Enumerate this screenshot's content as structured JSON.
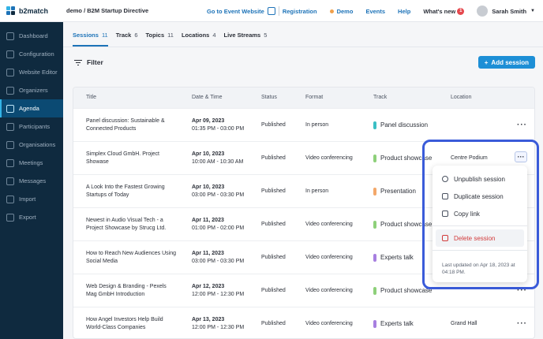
{
  "brand": {
    "name": "b2match",
    "org": "demo / B2M Startup Directive"
  },
  "topnav": {
    "go_to_event": "Go to Event Website",
    "registration": "Registration",
    "demo": "Demo",
    "events": "Events",
    "help": "Help",
    "whats_new": "What's new",
    "whats_new_count": "1",
    "user_name": "Sarah Smith"
  },
  "sidebar": {
    "items": [
      {
        "label": "Dashboard",
        "icon": "dashboard-icon"
      },
      {
        "label": "Configuration",
        "icon": "settings-icon"
      },
      {
        "label": "Website Editor",
        "icon": "edit-icon"
      },
      {
        "label": "Organizers",
        "icon": "users-icon"
      },
      {
        "label": "Agenda",
        "icon": "calendar-icon",
        "active": true
      },
      {
        "label": "Participants",
        "icon": "participants-icon"
      },
      {
        "label": "Organisations",
        "icon": "building-icon"
      },
      {
        "label": "Meetings",
        "icon": "meeting-icon"
      },
      {
        "label": "Messages",
        "icon": "message-icon"
      },
      {
        "label": "Import",
        "icon": "import-icon"
      },
      {
        "label": "Export",
        "icon": "export-icon"
      }
    ]
  },
  "tabs": [
    {
      "label": "Sessions",
      "count": "11",
      "active": true
    },
    {
      "label": "Track",
      "count": "6"
    },
    {
      "label": "Topics",
      "count": "11"
    },
    {
      "label": "Locations",
      "count": "4"
    },
    {
      "label": "Live Streams",
      "count": "5"
    }
  ],
  "toolbar": {
    "filter_label": "Filter",
    "add_label": "Add session"
  },
  "table": {
    "headers": [
      "Title",
      "Date & Time",
      "Status",
      "Format",
      "Track",
      "Location"
    ],
    "rows": [
      {
        "title": "Panel discussion: Sustainable & Connected Products",
        "date": "Apr 09, 2023",
        "time": "01:35 PM - 03:00 PM",
        "status": "Published",
        "format": "In person",
        "track": "Panel discussion",
        "track_color": "#3bbfc4",
        "location": ""
      },
      {
        "title": "Simplex Cloud GmbH. Project Showase",
        "date": "Apr 10, 2023",
        "time": "10:00 AM - 10:30 AM",
        "status": "Published",
        "format": "Video conferencing",
        "track": "Product showcase",
        "track_color": "#8ed07a",
        "location": "Centre Podium"
      },
      {
        "title": "A Look Into the Fastest Growing Startups of Today",
        "date": "Apr 10, 2023",
        "time": "03:00 PM - 03:30 PM",
        "status": "Published",
        "format": "In person",
        "track": "Presentation",
        "track_color": "#f3a86a",
        "location": ""
      },
      {
        "title": "Newest in Audio Visual Tech - a Project Showcase by Strucg Ltd.",
        "date": "Apr 11, 2023",
        "time": "01:00 PM - 02:00 PM",
        "status": "Published",
        "format": "Video conferencing",
        "track": "Product showcase",
        "track_color": "#8ed07a",
        "location": ""
      },
      {
        "title": "How to Reach New Audiences Using Social Media",
        "date": "Apr 11, 2023",
        "time": "03:00 PM - 03:30 PM",
        "status": "Published",
        "format": "Video conferencing",
        "track": "Experts talk",
        "track_color": "#a77fe0",
        "location": ""
      },
      {
        "title": "Web Design & Branding - Pexels Mag GmbH Introduction",
        "date": "Apr 12, 2023",
        "time": "12:00 PM - 12:30 PM",
        "status": "Published",
        "format": "Video conferencing",
        "track": "Product showcase",
        "track_color": "#8ed07a",
        "location": ""
      },
      {
        "title": "How Angel Investors Help Build World-Class Companies",
        "date": "Apr 13, 2023",
        "time": "12:00 PM - 12:30 PM",
        "status": "Published",
        "format": "Video conferencing",
        "track": "Experts talk",
        "track_color": "#a77fe0",
        "location": "Grand Hall"
      }
    ]
  },
  "context_menu": {
    "items": [
      "Unpublish session",
      "Duplicate session",
      "Copy link"
    ],
    "delete_label": "Delete session",
    "footer": "Last updated on Apr 18, 2023 at 04:18 PM."
  }
}
